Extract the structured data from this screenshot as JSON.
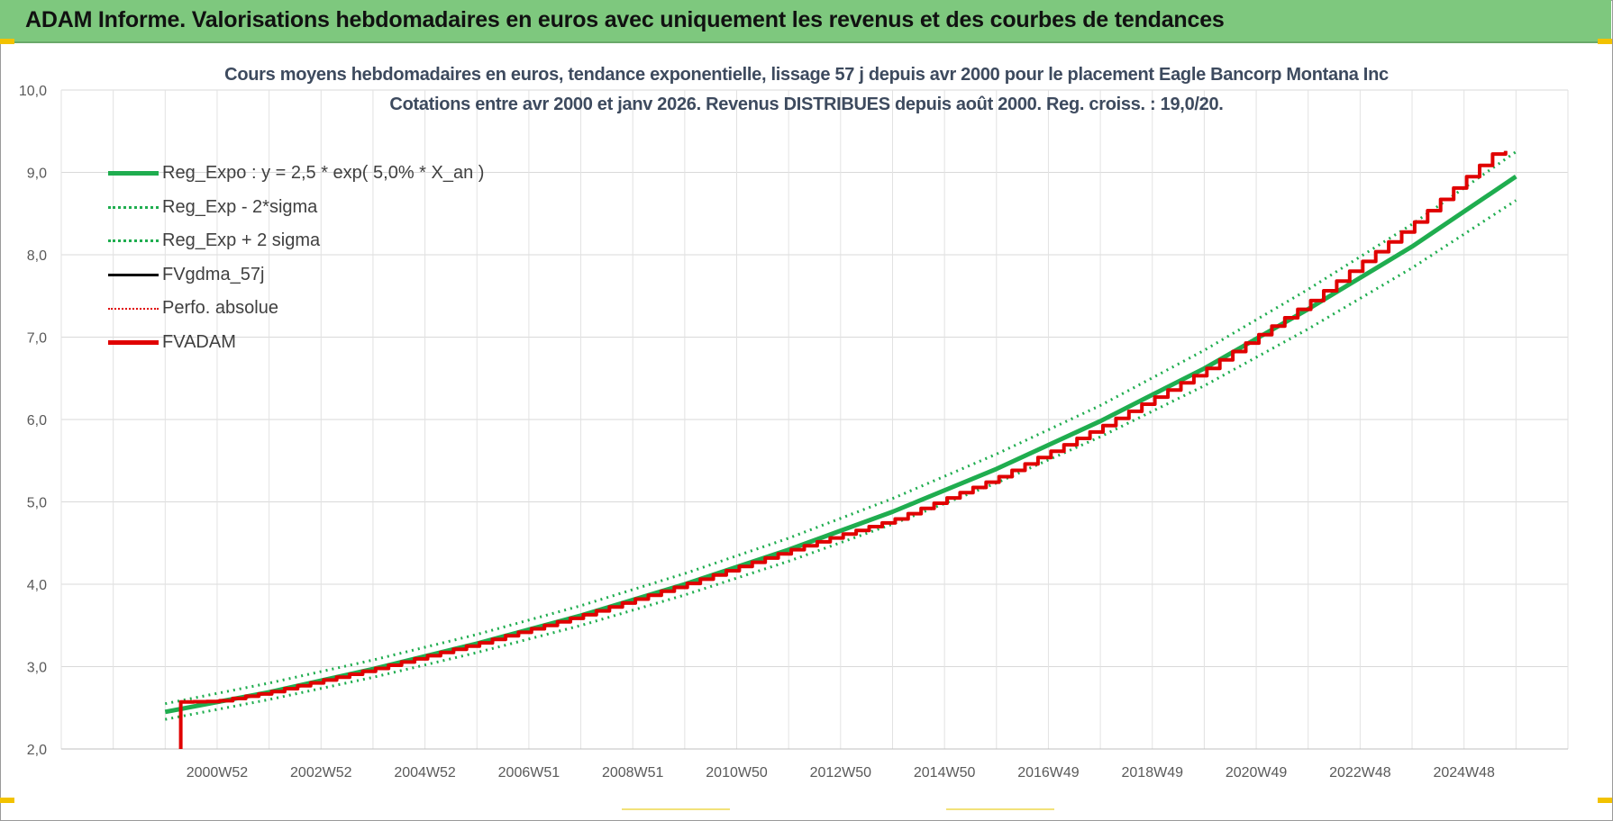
{
  "banner": {
    "title": "ADAM Informe. Valorisations hebdomadaires en euros avec uniquement les revenus et des courbes de tendances"
  },
  "chart_data": {
    "type": "line",
    "title_line1": "Cours moyens hebdomadaires en euros, tendance exponentielle, lissage 57 j depuis avr 2000 pour le placement Eagle Bancorp Montana Inc",
    "title_line2": "Cotations entre avr 2000 et janv 2026. Revenus DISTRIBUES depuis août 2000. Reg. croiss. : 19,0/20.",
    "xlabel": "",
    "ylabel": "",
    "xlim": [
      1998.0,
      2027.0
    ],
    "ylim": [
      2.0,
      10.0
    ],
    "y_ticks": [
      2.0,
      3.0,
      4.0,
      5.0,
      6.0,
      7.0,
      8.0,
      9.0,
      10.0
    ],
    "y_tick_labels": [
      "2,0",
      "3,0",
      "4,0",
      "5,0",
      "6,0",
      "7,0",
      "8,0",
      "9,0",
      "10,0"
    ],
    "x_ticks": [
      {
        "label": "2000W52",
        "x": 2001.0
      },
      {
        "label": "2002W52",
        "x": 2003.0
      },
      {
        "label": "2004W52",
        "x": 2005.0
      },
      {
        "label": "2006W51",
        "x": 2007.0
      },
      {
        "label": "2008W51",
        "x": 2009.0
      },
      {
        "label": "2010W50",
        "x": 2011.0
      },
      {
        "label": "2012W50",
        "x": 2013.0
      },
      {
        "label": "2014W50",
        "x": 2015.0
      },
      {
        "label": "2016W49",
        "x": 2017.0
      },
      {
        "label": "2018W49",
        "x": 2019.0
      },
      {
        "label": "2020W49",
        "x": 2021.0
      },
      {
        "label": "2022W48",
        "x": 2023.0
      },
      {
        "label": "2024W48",
        "x": 2025.0
      }
    ],
    "grid": true,
    "legend_position": "top-left",
    "series": [
      {
        "name": "Reg_Expo : y = 2,5 * exp( 5,0% *  X_an )",
        "color": "#1fad4f",
        "style": "solid",
        "x": [
          2000.0,
          2002.0,
          2004.0,
          2006.0,
          2008.0,
          2010.0,
          2012.0,
          2014.0,
          2016.0,
          2018.0,
          2020.0,
          2022.0,
          2024.0,
          2026.0
        ],
        "values": [
          2.45,
          2.69,
          2.97,
          3.28,
          3.62,
          4.0,
          4.42,
          4.88,
          5.4,
          5.98,
          6.62,
          7.34,
          8.1,
          8.95
        ]
      },
      {
        "name": "Reg_Exp - 2*sigma",
        "color": "#1fad4f",
        "style": "dotted",
        "x": [
          2000.0,
          2002.0,
          2004.0,
          2006.0,
          2008.0,
          2010.0,
          2012.0,
          2014.0,
          2016.0,
          2018.0,
          2020.0,
          2022.0,
          2024.0,
          2026.0
        ],
        "values": [
          2.36,
          2.6,
          2.87,
          3.17,
          3.5,
          3.87,
          4.28,
          4.73,
          5.23,
          5.79,
          6.41,
          7.1,
          7.84,
          8.66
        ]
      },
      {
        "name": "Reg_Exp + 2 sigma",
        "color": "#1fad4f",
        "style": "dotted",
        "x": [
          2000.0,
          2002.0,
          2004.0,
          2006.0,
          2008.0,
          2010.0,
          2012.0,
          2014.0,
          2016.0,
          2018.0,
          2020.0,
          2022.0,
          2024.0,
          2026.0
        ],
        "values": [
          2.55,
          2.8,
          3.08,
          3.39,
          3.74,
          4.13,
          4.56,
          5.04,
          5.58,
          6.17,
          6.84,
          7.58,
          8.37,
          9.25
        ]
      },
      {
        "name": "FVgdma_57j",
        "color": "#000000",
        "style": "solid",
        "x": [
          2000.3,
          2000.3,
          2001.0,
          2002.0,
          2004.0,
          2006.0,
          2008.0,
          2010.0,
          2012.0,
          2013.0,
          2014.0,
          2016.0,
          2018.0,
          2020.0,
          2022.0,
          2024.0,
          2025.6,
          2026.0
        ],
        "values": [
          2.0,
          2.57,
          2.58,
          2.69,
          2.97,
          3.28,
          3.62,
          4.0,
          4.41,
          4.6,
          4.78,
          5.29,
          5.91,
          6.6,
          7.42,
          8.37,
          9.25,
          9.27
        ]
      },
      {
        "name": "Perfo. absolue",
        "color": "#e00000",
        "style": "dotted",
        "x": [
          2000.3,
          2026.0
        ],
        "values": [
          2.57,
          9.27
        ]
      },
      {
        "name": "FVADAM",
        "color": "#e00000",
        "style": "solid",
        "x": [
          2000.3,
          2000.3,
          2001.0,
          2002.0,
          2004.0,
          2006.0,
          2008.0,
          2010.0,
          2012.0,
          2013.0,
          2014.0,
          2016.0,
          2018.0,
          2020.0,
          2022.0,
          2024.0,
          2025.6,
          2026.0
        ],
        "values": [
          2.0,
          2.57,
          2.58,
          2.69,
          2.97,
          3.28,
          3.62,
          4.0,
          4.41,
          4.6,
          4.78,
          5.29,
          5.91,
          6.6,
          7.42,
          8.37,
          9.25,
          9.27
        ]
      }
    ]
  }
}
